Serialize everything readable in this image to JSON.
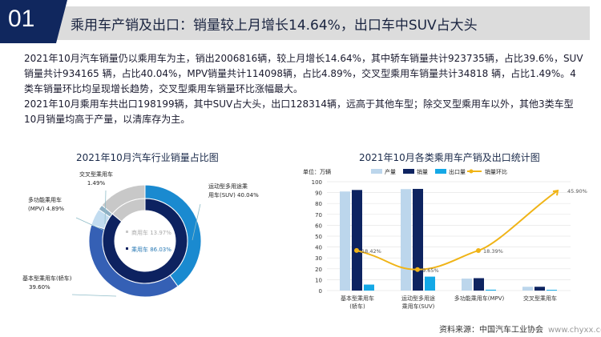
{
  "header": {
    "number": "01",
    "title": "乘用车产销及出口：销量较上月增长14.64%，出口车中SUV占大头"
  },
  "body": {
    "paragraph1": "2021年10月汽车销量仍以乘用车为主，销出2006816辆，较上月增长14.64%，其中轿车销量共计923735辆，占比39.6%，SUV销量共计934165 辆，占比40.04%，MPV销量共计114098辆，占比4.89%，交叉型乘用车销量共计34818 辆，占比1.49%。4类车销量环比均呈现增长趋势，交叉型乘用车销量环比涨幅最大。",
    "paragraph2": "2021年10月乘用车共出口198199辆，其中SUV占大头，出口128314辆，远高于其他车型；除交叉型乘用车以外，其他3类车型10月销量均高于产量，以清库存为主。"
  },
  "chart_data": [
    {
      "type": "pie",
      "title": "2021年10月汽车行业销量占比图",
      "inner": [
        {
          "label": "乘用车",
          "value": 86.03,
          "text": "乘用车 86.03%",
          "color": "#0d2260"
        },
        {
          "label": "商用车",
          "value": 13.97,
          "text": "商用车 13.97%",
          "color": "#c8c8c8"
        }
      ],
      "outer": [
        {
          "label1": "运动型多用途乘",
          "label2": "用车(SUV) 40.04%",
          "value": 40.04,
          "color": "#1a8ad0"
        },
        {
          "label1": "基本型乘用车(轿车)",
          "label2": "39.60%",
          "value": 39.6,
          "color": "#3560b5"
        },
        {
          "label1": "多功能乘用车",
          "label2": "(MPV) 4.89%",
          "value": 4.89,
          "color": "#c2dcf0"
        },
        {
          "label1": "交叉型乘用车",
          "label2": "1.49%",
          "value": 1.49,
          "color": "#8fb0c4"
        },
        {
          "label1": "",
          "label2": "",
          "value": 13.97,
          "color": "#c8c8c8"
        }
      ]
    },
    {
      "type": "bar",
      "title": "2021年10月各类乘用车产销及出口统计图",
      "unit": "单位：万辆",
      "categories": [
        [
          "基本型乘用车",
          "(轿车)"
        ],
        [
          "运动型多用途",
          "乘用车(SUV)"
        ],
        [
          "多功能乘用车(MPV)",
          ""
        ],
        [
          "交叉型乘用车",
          ""
        ]
      ],
      "ylim": [
        0,
        100
      ],
      "yticks": [
        0,
        10,
        20,
        30,
        40,
        50,
        60,
        70,
        80,
        90,
        100
      ],
      "series": [
        {
          "name": "产量",
          "color": "#bcd6ec",
          "values": [
            91.0,
            93.2,
            11.0,
            3.5
          ]
        },
        {
          "name": "销量",
          "color": "#0e2461",
          "values": [
            92.4,
            93.4,
            11.4,
            3.5
          ]
        },
        {
          "name": "出口量",
          "color": "#14a8e6",
          "values": [
            5.5,
            12.8,
            0.8,
            0.7
          ]
        }
      ],
      "line": {
        "name": "销量环比",
        "color": "#f0b417",
        "values": [
          18.42,
          9.65,
          18.39,
          45.9
        ],
        "labels": [
          "18.42%",
          "9.65%",
          "18.39%",
          "45.90%"
        ],
        "ylim": [
          0,
          50
        ]
      }
    }
  ],
  "source": {
    "text": "资料来源：中国汽车工业协会",
    "url": "www.chyxx.com"
  }
}
